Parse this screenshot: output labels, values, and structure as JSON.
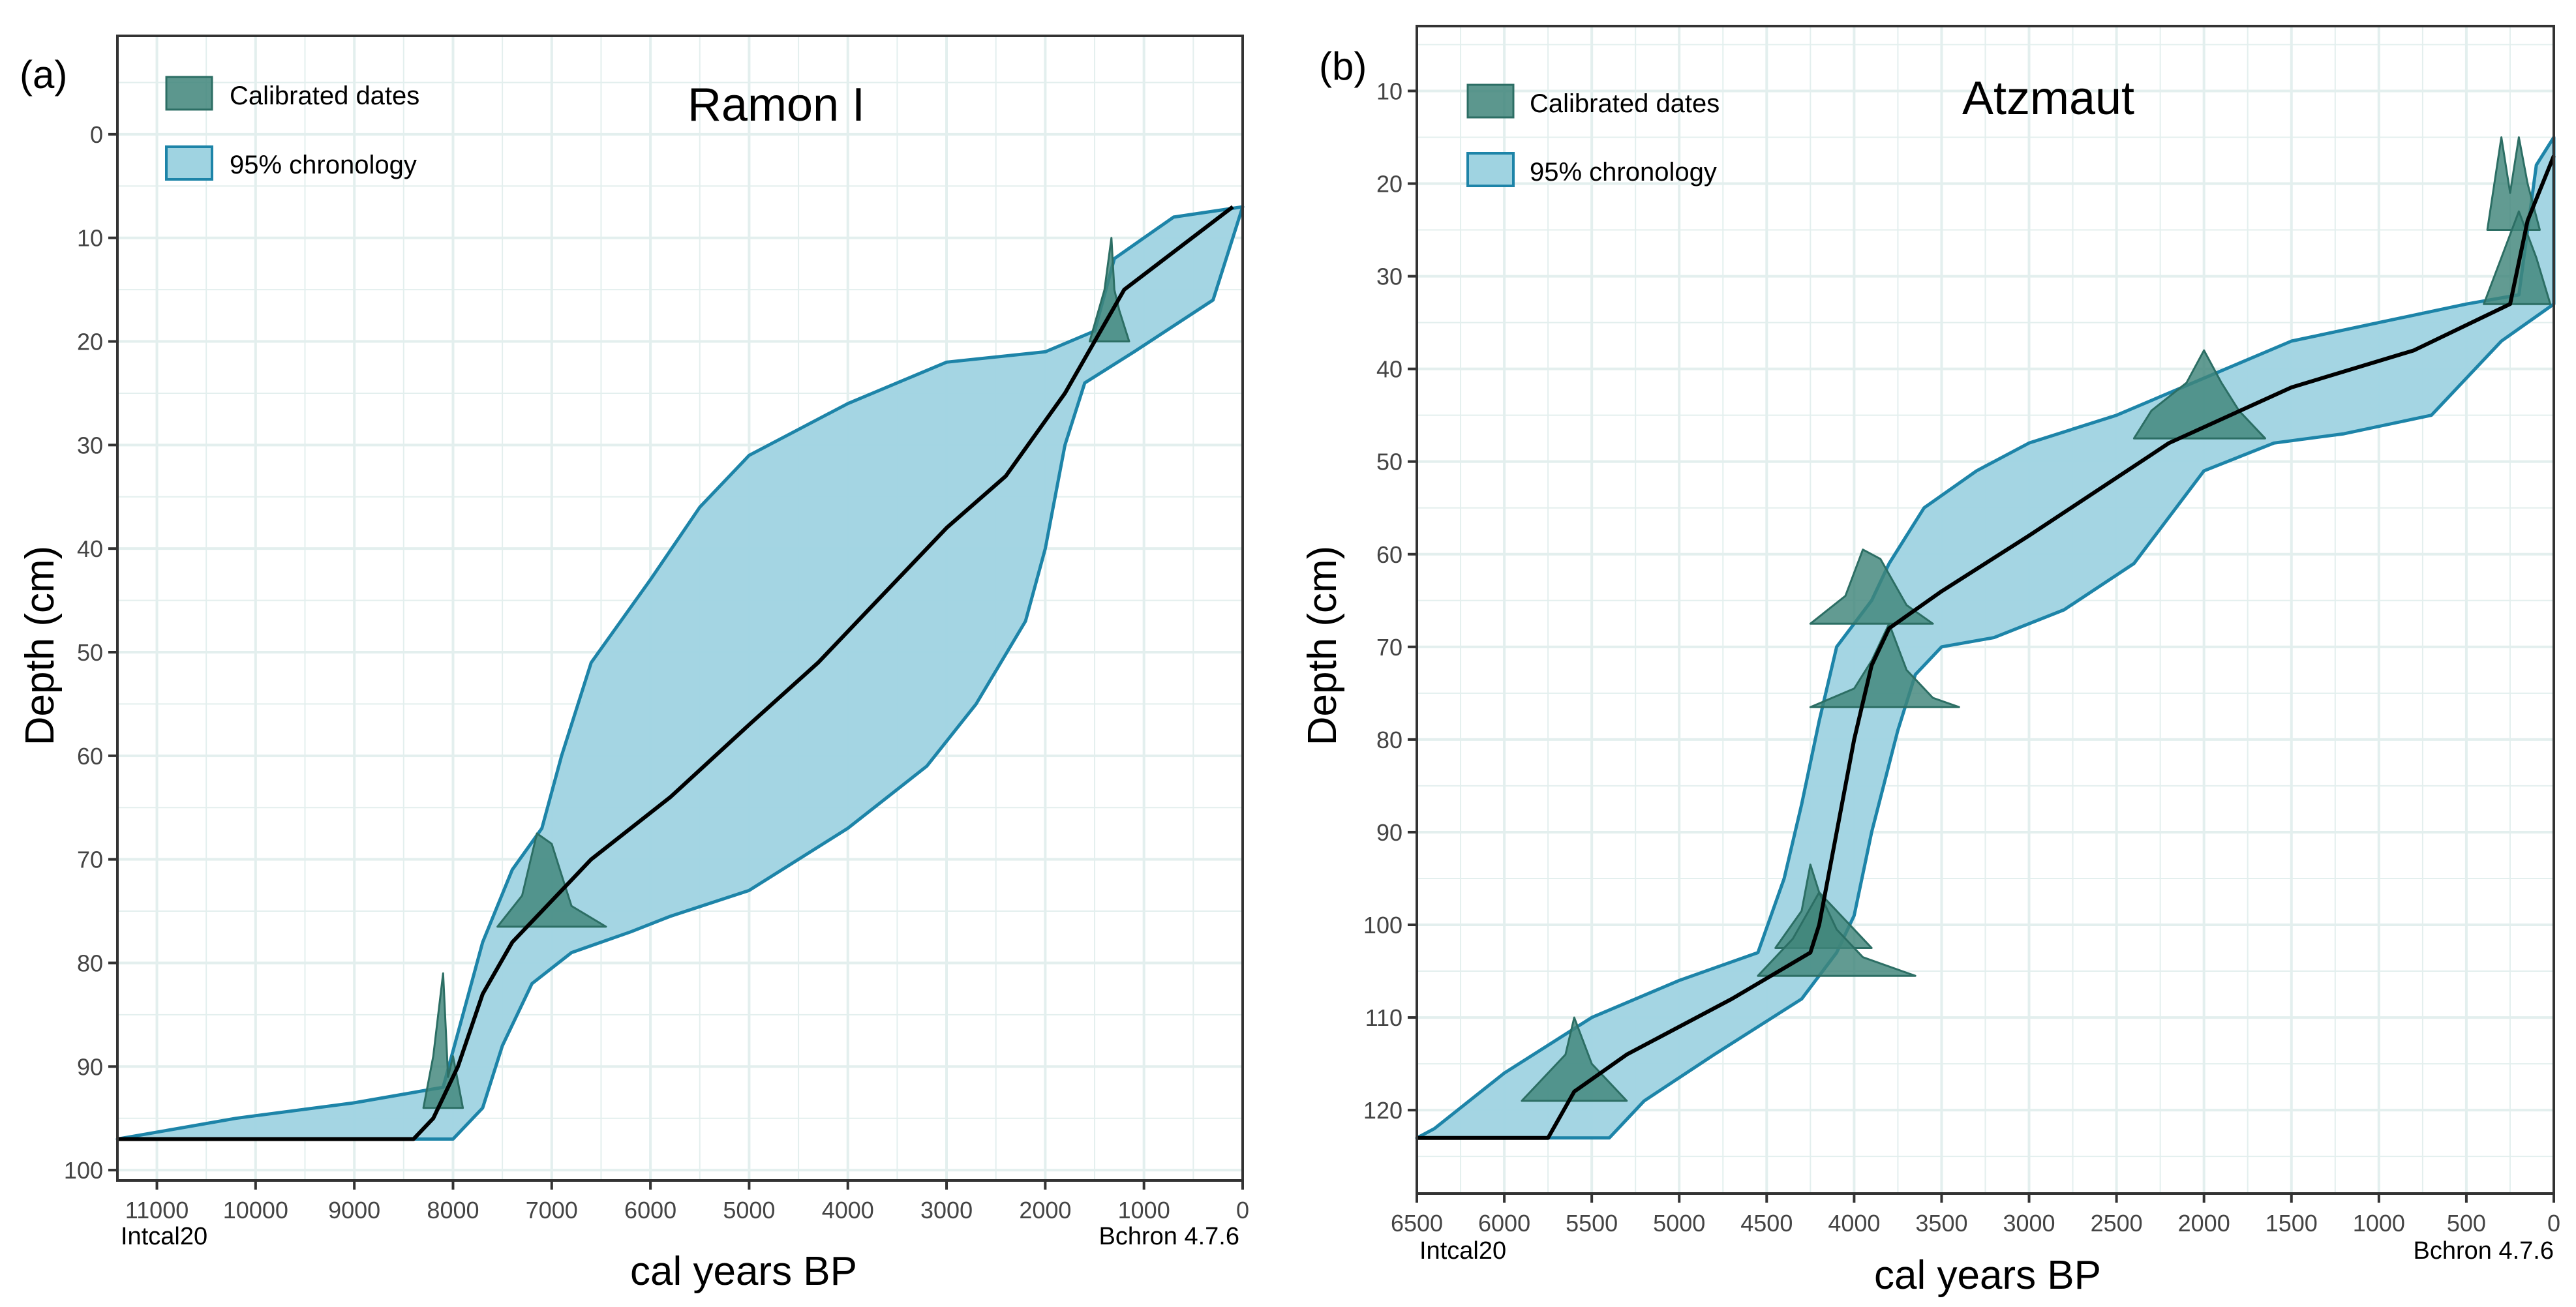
{
  "colors": {
    "band_fill": "#9fd3e1",
    "band_stroke": "#1d84a8",
    "dates_fill": "#3f857a",
    "dates_stroke": "#2c6e64",
    "median_line": "#000000",
    "grid": "#e3efee",
    "frame": "#333333"
  },
  "chart_data": [
    {
      "type": "line",
      "panel_label": "(a)",
      "title": "Ramon I",
      "xlabel": "cal years BP",
      "ylabel": "Depth (cm)",
      "xlim": [
        11400,
        0
      ],
      "ylim": [
        -9.5,
        101
      ],
      "x_ticks": [
        11000,
        10000,
        9000,
        8000,
        7000,
        6000,
        5000,
        4000,
        3000,
        2000,
        1000,
        0
      ],
      "x_tick_labels": [
        "11000",
        "10000",
        "9000",
        "8000",
        "7000",
        "6000",
        "5000",
        "4000",
        "3000",
        "2000",
        "1000",
        "0"
      ],
      "y_ticks": [
        0,
        10,
        20,
        30,
        40,
        50,
        60,
        70,
        80,
        90,
        100
      ],
      "y_tick_labels": [
        "0",
        "10",
        "20",
        "30",
        "40",
        "50",
        "60",
        "70",
        "80",
        "90",
        "100"
      ],
      "corner_left": "Intcal20",
      "corner_right": "Bchron 4.7.6",
      "legend": {
        "position": "top-left",
        "entries": [
          {
            "kind": "dates",
            "label": "Calibrated dates"
          },
          {
            "kind": "band",
            "label": "95% chronology"
          }
        ]
      },
      "series": [
        {
          "name": "median",
          "points": [
            [
              100,
              7
            ],
            [
              1200,
              15
            ],
            [
              1800,
              25
            ],
            [
              2400,
              33
            ],
            [
              3000,
              38
            ],
            [
              3700,
              45
            ],
            [
              4300,
              51
            ],
            [
              5000,
              57
            ],
            [
              5800,
              64
            ],
            [
              6600,
              70
            ],
            [
              7000,
              74
            ],
            [
              7400,
              78
            ],
            [
              7700,
              83
            ],
            [
              7950,
              90
            ],
            [
              8200,
              95
            ],
            [
              8400,
              97
            ],
            [
              11400,
              97
            ]
          ]
        },
        {
          "name": "95% lower",
          "points": [
            [
              0,
              7
            ],
            [
              700,
              8
            ],
            [
              1300,
              12
            ],
            [
              1500,
              19
            ],
            [
              2000,
              21
            ],
            [
              3000,
              22
            ],
            [
              4000,
              26
            ],
            [
              5000,
              31
            ],
            [
              5500,
              36
            ],
            [
              6000,
              43
            ],
            [
              6600,
              51
            ],
            [
              6900,
              60
            ],
            [
              7100,
              67
            ],
            [
              7400,
              71
            ],
            [
              7700,
              78
            ],
            [
              8100,
              92
            ],
            [
              9000,
              93.5
            ],
            [
              10200,
              95
            ],
            [
              11400,
              97
            ]
          ]
        },
        {
          "name": "95% upper",
          "points": [
            [
              0,
              7
            ],
            [
              300,
              16
            ],
            [
              1100,
              21
            ],
            [
              1600,
              24
            ],
            [
              1800,
              30
            ],
            [
              2000,
              40
            ],
            [
              2200,
              47
            ],
            [
              2700,
              55
            ],
            [
              3200,
              61
            ],
            [
              4000,
              67
            ],
            [
              5000,
              73
            ],
            [
              5800,
              75.5
            ],
            [
              6200,
              77
            ],
            [
              6800,
              79
            ],
            [
              7200,
              82
            ],
            [
              7500,
              88
            ],
            [
              7700,
              94
            ],
            [
              8000,
              97
            ]
          ]
        }
      ],
      "calibrated_dates": [
        {
          "depth": 20,
          "peaks": [
            [
              1550,
              0
            ],
            [
              1400,
              5
            ],
            [
              1330,
              10
            ],
            [
              1300,
              5
            ],
            [
              1250,
              3
            ],
            [
              1150,
              0
            ]
          ]
        },
        {
          "depth": 76.5,
          "peaks": [
            [
              7550,
              0
            ],
            [
              7300,
              3
            ],
            [
              7150,
              9
            ],
            [
              7000,
              8
            ],
            [
              6900,
              5
            ],
            [
              6800,
              2
            ],
            [
              6450,
              0
            ]
          ]
        },
        {
          "depth": 94,
          "peaks": [
            [
              8300,
              0
            ],
            [
              8200,
              5
            ],
            [
              8100,
              13
            ],
            [
              8050,
              3
            ],
            [
              8000,
              5
            ],
            [
              7900,
              0
            ]
          ]
        }
      ]
    },
    {
      "type": "line",
      "panel_label": "(b)",
      "title": "Atzmaut",
      "xlabel": "cal years BP",
      "ylabel": "Depth (cm)",
      "xlim": [
        6500,
        0
      ],
      "ylim": [
        3,
        129
      ],
      "x_ticks": [
        6500,
        6000,
        5500,
        5000,
        4500,
        4000,
        3500,
        3000,
        2500,
        2000,
        1500,
        1000,
        500,
        0
      ],
      "x_tick_labels": [
        "6500",
        "6000",
        "5500",
        "5000",
        "4500",
        "4000",
        "3500",
        "3000",
        "2500",
        "2000",
        "1500",
        "1000",
        "500",
        "0"
      ],
      "y_ticks": [
        10,
        20,
        30,
        40,
        50,
        60,
        70,
        80,
        90,
        100,
        110,
        120
      ],
      "y_tick_labels": [
        "10",
        "20",
        "30",
        "40",
        "50",
        "60",
        "70",
        "80",
        "90",
        "100",
        "110",
        "120"
      ],
      "corner_left": "Intcal20",
      "corner_right": "Bchron 4.7.6",
      "legend": {
        "position": "top-left",
        "entries": [
          {
            "kind": "dates",
            "label": "Calibrated dates"
          },
          {
            "kind": "band",
            "label": "95% chronology"
          }
        ]
      },
      "series": [
        {
          "name": "median",
          "points": [
            [
              0,
              17
            ],
            [
              150,
              24
            ],
            [
              250,
              33
            ],
            [
              800,
              38
            ],
            [
              1500,
              42
            ],
            [
              2200,
              48
            ],
            [
              3000,
              58
            ],
            [
              3500,
              64
            ],
            [
              3800,
              68
            ],
            [
              3900,
              72
            ],
            [
              4000,
              80
            ],
            [
              4100,
              90
            ],
            [
              4200,
              100
            ],
            [
              4250,
              103
            ],
            [
              4700,
              108
            ],
            [
              5300,
              114
            ],
            [
              5600,
              118
            ],
            [
              5750,
              123
            ],
            [
              6500,
              123
            ]
          ]
        },
        {
          "name": "95% lower",
          "points": [
            [
              0,
              15
            ],
            [
              100,
              18
            ],
            [
              200,
              32
            ],
            [
              500,
              33
            ],
            [
              1000,
              35
            ],
            [
              1500,
              37
            ],
            [
              2000,
              41
            ],
            [
              2500,
              45
            ],
            [
              3000,
              48
            ],
            [
              3300,
              51
            ],
            [
              3600,
              55
            ],
            [
              3800,
              61
            ],
            [
              3900,
              65
            ],
            [
              4100,
              70
            ],
            [
              4200,
              78
            ],
            [
              4300,
              87
            ],
            [
              4400,
              95
            ],
            [
              4550,
              103
            ],
            [
              5000,
              106
            ],
            [
              5500,
              110
            ],
            [
              6000,
              116
            ],
            [
              6400,
              122
            ],
            [
              6500,
              123
            ]
          ]
        },
        {
          "name": "95% upper",
          "points": [
            [
              0,
              17
            ],
            [
              0,
              33
            ],
            [
              300,
              37
            ],
            [
              700,
              45
            ],
            [
              1200,
              47
            ],
            [
              1600,
              48
            ],
            [
              2000,
              51
            ],
            [
              2200,
              56
            ],
            [
              2400,
              61
            ],
            [
              2800,
              66
            ],
            [
              3200,
              69
            ],
            [
              3500,
              70
            ],
            [
              3650,
              73
            ],
            [
              3750,
              79
            ],
            [
              3900,
              90
            ],
            [
              4000,
              99
            ],
            [
              4100,
              103
            ],
            [
              4300,
              108
            ],
            [
              4800,
              114
            ],
            [
              5200,
              119
            ],
            [
              5400,
              123
            ],
            [
              5450,
              123
            ]
          ]
        }
      ],
      "calibrated_dates": [
        {
          "depth": 25,
          "peaks": [
            [
              380,
              0
            ],
            [
              300,
              10
            ],
            [
              250,
              4
            ],
            [
              200,
              10
            ],
            [
              150,
              5
            ],
            [
              80,
              0
            ]
          ]
        },
        {
          "depth": 33,
          "peaks": [
            [
              400,
              0
            ],
            [
              300,
              5
            ],
            [
              200,
              10
            ],
            [
              100,
              5
            ],
            [
              20,
              0
            ]
          ]
        },
        {
          "depth": 47.5,
          "peaks": [
            [
              2400,
              0
            ],
            [
              2300,
              3
            ],
            [
              2100,
              6
            ],
            [
              2000,
              9.5
            ],
            [
              1900,
              6
            ],
            [
              1800,
              3
            ],
            [
              1650,
              0
            ]
          ]
        },
        {
          "depth": 67.5,
          "peaks": [
            [
              4250,
              0
            ],
            [
              4050,
              3
            ],
            [
              3950,
              8
            ],
            [
              3850,
              7
            ],
            [
              3700,
              2
            ],
            [
              3550,
              0
            ]
          ]
        },
        {
          "depth": 76.5,
          "peaks": [
            [
              4250,
              0
            ],
            [
              4000,
              2
            ],
            [
              3900,
              5
            ],
            [
              3800,
              9
            ],
            [
              3700,
              4
            ],
            [
              3550,
              1
            ],
            [
              3400,
              0
            ]
          ]
        },
        {
          "depth": 102.5,
          "peaks": [
            [
              4450,
              0
            ],
            [
              4300,
              4
            ],
            [
              4250,
              9
            ],
            [
              4200,
              6
            ],
            [
              4100,
              4
            ],
            [
              3950,
              1
            ],
            [
              3900,
              0
            ]
          ]
        },
        {
          "depth": 105.5,
          "peaks": [
            [
              4550,
              0
            ],
            [
              4350,
              4
            ],
            [
              4200,
              9
            ],
            [
              4100,
              5
            ],
            [
              3950,
              2
            ],
            [
              3650,
              0
            ]
          ]
        },
        {
          "depth": 119,
          "peaks": [
            [
              5900,
              0
            ],
            [
              5800,
              2
            ],
            [
              5650,
              5
            ],
            [
              5600,
              9
            ],
            [
              5500,
              4
            ],
            [
              5300,
              0
            ]
          ]
        }
      ]
    }
  ]
}
